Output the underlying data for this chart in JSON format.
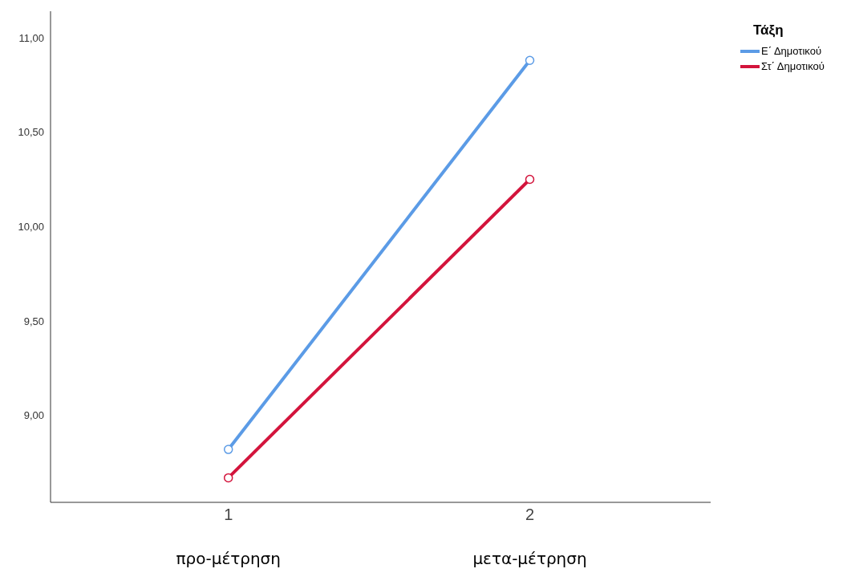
{
  "chart_data": {
    "type": "line",
    "legend_title": "Τάξη",
    "categories": [
      "1",
      "2"
    ],
    "series": [
      {
        "name": "Ε΄ Δημοτικού",
        "color": "#5b9be6",
        "values": [
          8.82,
          10.88
        ]
      },
      {
        "name": "Στ΄ Δημοτικού",
        "color": "#d3143c",
        "values": [
          8.67,
          10.25
        ]
      }
    ],
    "ylim": [
      8.54,
      11.14
    ],
    "yticks": [
      {
        "value": 9,
        "label": "9,00"
      },
      {
        "value": 9.5,
        "label": "9,50"
      },
      {
        "value": 10,
        "label": "10,00"
      },
      {
        "value": 10.5,
        "label": "10,50"
      },
      {
        "value": 11,
        "label": "11,00"
      }
    ],
    "annotations": [
      "προ-μέτρηση",
      "μετα-μέτρηση"
    ],
    "grid": false,
    "legend": "top right",
    "marker": "circle",
    "line_style": "solid"
  }
}
